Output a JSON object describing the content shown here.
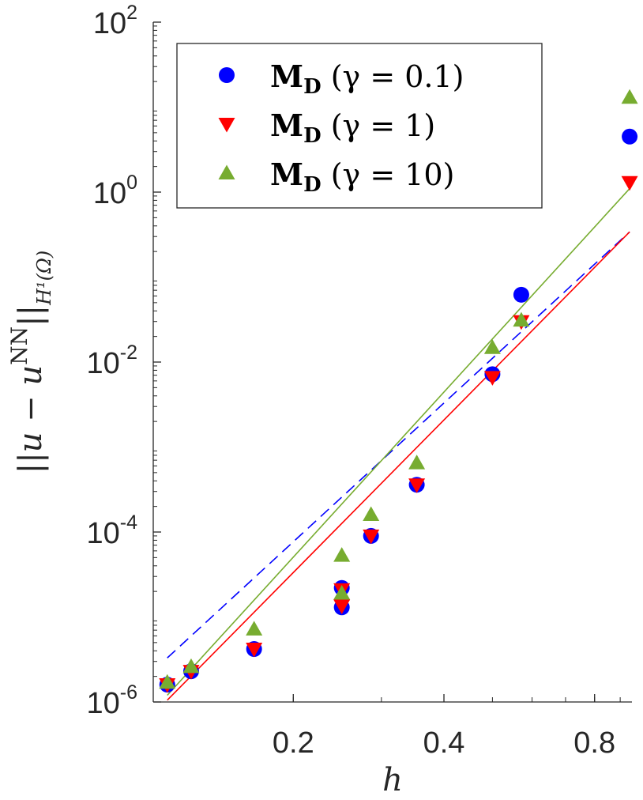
{
  "chart_data": {
    "type": "scatter",
    "xscale": "log",
    "yscale": "log",
    "xlim": [
      0.105,
      0.95
    ],
    "ylim": [
      1e-06,
      100
    ],
    "xlabel": "h",
    "ylabel": "||u − u^NN||_{H¹(Ω)}",
    "ylabel_parts": {
      "norm_open": "||u − u",
      "superscript": "NN",
      "norm_close": "||",
      "subscript": "H¹(Ω)"
    },
    "xticks": [
      {
        "value": 0.2,
        "label": "0.2"
      },
      {
        "value": 0.4,
        "label": "0.4"
      },
      {
        "value": 0.8,
        "label": "0.8"
      }
    ],
    "yticks": [
      {
        "value": 1e-06,
        "base": "10",
        "exp": "-6"
      },
      {
        "value": 0.0001,
        "base": "10",
        "exp": "-4"
      },
      {
        "value": 0.01,
        "base": "10",
        "exp": "-2"
      },
      {
        "value": 1,
        "base": "10",
        "exp": "0"
      },
      {
        "value": 100,
        "base": "10",
        "exp": "2"
      }
    ],
    "legend_position": "top-left",
    "series": [
      {
        "name": "M_D (γ = 0.1)",
        "legend": {
          "bold": "M",
          "sub": "D",
          "text": " (γ = 0.1)"
        },
        "marker": "circle",
        "color": "#0000ff",
        "points": [
          [
            0.112,
            1.6e-06
          ],
          [
            0.125,
            2.3e-06
          ],
          [
            0.167,
            4.2e-06
          ],
          [
            0.25,
            2.2e-05
          ],
          [
            0.25,
            1.3e-05
          ],
          [
            0.286,
            9e-05
          ],
          [
            0.353,
            0.00036
          ],
          [
            0.5,
            0.0072
          ],
          [
            0.571,
            0.062
          ],
          [
            0.94,
            4.5
          ]
        ],
        "fit": {
          "line_style": "dashed",
          "x": [
            0.112,
            0.94
          ],
          "y": [
            3.3e-06,
            0.34
          ]
        }
      },
      {
        "name": "M_D (γ = 1)",
        "legend": {
          "bold": "M",
          "sub": "D",
          "text": " (γ = 1)"
        },
        "marker": "triangle-down",
        "color": "#ff0000",
        "points": [
          [
            0.112,
            1.6e-06
          ],
          [
            0.125,
            2.3e-06
          ],
          [
            0.167,
            4.2e-06
          ],
          [
            0.25,
            2.1e-05
          ],
          [
            0.25,
            1.35e-05
          ],
          [
            0.286,
            9e-05
          ],
          [
            0.353,
            0.00036
          ],
          [
            0.5,
            0.0066
          ],
          [
            0.571,
            0.03
          ],
          [
            0.94,
            1.3
          ]
        ],
        "fit": {
          "line_style": "solid",
          "x": [
            0.112,
            0.94
          ],
          "y": [
            1.05e-06,
            0.34
          ]
        }
      },
      {
        "name": "M_D (γ = 10)",
        "legend": {
          "bold": "M",
          "sub": "D",
          "text": " (γ = 10)"
        },
        "marker": "triangle-up",
        "color": "#77ac30",
        "points": [
          [
            0.112,
            1.7e-06
          ],
          [
            0.125,
            2.6e-06
          ],
          [
            0.167,
            7.2e-06
          ],
          [
            0.25,
            5.3e-05
          ],
          [
            0.25,
            1.9e-05
          ],
          [
            0.286,
            0.00016
          ],
          [
            0.353,
            0.00065
          ],
          [
            0.5,
            0.0148
          ],
          [
            0.571,
            0.031
          ],
          [
            0.94,
            13
          ]
        ],
        "fit": {
          "line_style": "solid",
          "x": [
            0.112,
            0.94
          ],
          "y": [
            1.2e-06,
            1.1
          ]
        }
      }
    ]
  }
}
